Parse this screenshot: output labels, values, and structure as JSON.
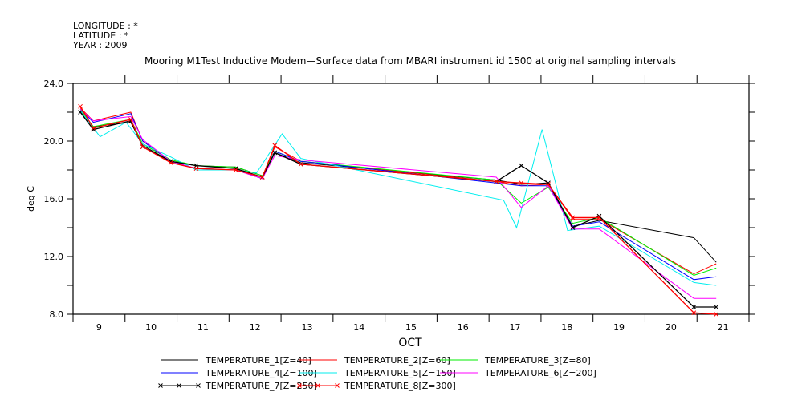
{
  "header": {
    "lines": [
      "LONGITUDE : *",
      "LATITUDE : *",
      "YEAR : 2009"
    ]
  },
  "chart_data": {
    "type": "line",
    "title": "Mooring M1Test Inductive Modem—Surface data from MBARI instrument id 1500 at original sampling intervals",
    "xlabel": "OCT",
    "ylabel": "deg C",
    "xlim": [
      9,
      22
    ],
    "ylim": [
      8,
      24
    ],
    "xticks": [
      9,
      10,
      11,
      12,
      13,
      14,
      15,
      16,
      17,
      18,
      19,
      20,
      21
    ],
    "yticks": [
      8,
      12,
      16,
      20,
      24
    ],
    "ytick_labels": [
      "8.0",
      "12.0",
      "16.0",
      "20.0",
      "24.0"
    ],
    "grid": false,
    "legend_position": "bottom",
    "series": [
      {
        "name": "TEMPERATURE_1[Z=40]",
        "color": "#000000",
        "marker": "none",
        "points": [
          [
            9.14,
            22.0
          ],
          [
            9.39,
            21.0
          ],
          [
            10.11,
            21.3
          ],
          [
            10.34,
            19.7
          ],
          [
            10.88,
            18.6
          ],
          [
            11.37,
            18.3
          ],
          [
            12.13,
            18.2
          ],
          [
            12.64,
            17.6
          ],
          [
            12.88,
            19.2
          ],
          [
            13.38,
            18.5
          ],
          [
            17.14,
            17.3
          ],
          [
            17.62,
            17.0
          ],
          [
            18.14,
            17.1
          ],
          [
            18.61,
            14.1
          ],
          [
            19.12,
            14.5
          ],
          [
            20.94,
            13.3
          ],
          [
            21.37,
            11.6
          ]
        ]
      },
      {
        "name": "TEMPERATURE_2[Z=60]",
        "color": "#ff0000",
        "marker": "none",
        "points": [
          [
            9.14,
            22.3
          ],
          [
            9.39,
            21.4
          ],
          [
            10.11,
            22.0
          ],
          [
            10.34,
            20.0
          ],
          [
            10.88,
            18.6
          ],
          [
            11.37,
            18.1
          ],
          [
            12.13,
            18.0
          ],
          [
            12.64,
            17.4
          ],
          [
            12.88,
            19.6
          ],
          [
            13.38,
            18.6
          ],
          [
            17.14,
            17.2
          ],
          [
            17.62,
            16.9
          ],
          [
            18.14,
            17.0
          ],
          [
            18.61,
            14.6
          ],
          [
            19.12,
            14.6
          ],
          [
            20.94,
            10.8
          ],
          [
            21.37,
            11.5
          ]
        ]
      },
      {
        "name": "TEMPERATURE_3[Z=80]",
        "color": "#00ee00",
        "marker": "none",
        "points": [
          [
            9.14,
            22.2
          ],
          [
            9.39,
            21.0
          ],
          [
            10.11,
            21.5
          ],
          [
            10.34,
            19.8
          ],
          [
            10.88,
            18.7
          ],
          [
            11.37,
            18.3
          ],
          [
            12.13,
            18.2
          ],
          [
            12.64,
            17.6
          ],
          [
            12.88,
            19.3
          ],
          [
            13.38,
            18.6
          ],
          [
            17.14,
            17.3
          ],
          [
            17.62,
            15.7
          ],
          [
            18.14,
            16.8
          ],
          [
            18.61,
            14.3
          ],
          [
            19.12,
            14.7
          ],
          [
            20.94,
            10.7
          ],
          [
            21.37,
            11.2
          ]
        ]
      },
      {
        "name": "TEMPERATURE_4[Z=100]",
        "color": "#0000ff",
        "marker": "none",
        "points": [
          [
            9.14,
            22.2
          ],
          [
            9.39,
            21.3
          ],
          [
            10.11,
            21.9
          ],
          [
            10.34,
            20.0
          ],
          [
            10.88,
            18.6
          ],
          [
            11.37,
            18.1
          ],
          [
            12.13,
            18.0
          ],
          [
            12.64,
            17.4
          ],
          [
            12.88,
            19.3
          ],
          [
            13.38,
            18.6
          ],
          [
            17.14,
            17.1
          ],
          [
            17.62,
            16.9
          ],
          [
            18.14,
            16.9
          ],
          [
            18.61,
            14.1
          ],
          [
            19.12,
            14.4
          ],
          [
            20.94,
            10.4
          ],
          [
            21.37,
            10.6
          ]
        ]
      },
      {
        "name": "TEMPERATURE_5[Z=150]",
        "color": "#00eeee",
        "marker": "none",
        "points": [
          [
            9.14,
            22.1
          ],
          [
            9.52,
            20.3
          ],
          [
            10.02,
            21.3
          ],
          [
            10.34,
            19.8
          ],
          [
            10.88,
            18.9
          ],
          [
            11.37,
            18.0
          ],
          [
            12.13,
            18.0
          ],
          [
            12.53,
            17.8
          ],
          [
            13.02,
            20.5
          ],
          [
            13.38,
            18.8
          ],
          [
            17.28,
            15.9
          ],
          [
            17.53,
            14.0
          ],
          [
            18.02,
            20.8
          ],
          [
            18.51,
            13.8
          ],
          [
            19.12,
            14.1
          ],
          [
            20.94,
            10.2
          ],
          [
            21.37,
            10.0
          ]
        ]
      },
      {
        "name": "TEMPERATURE_6[Z=200]",
        "color": "#ff00ff",
        "marker": "none",
        "points": [
          [
            9.14,
            22.2
          ],
          [
            9.39,
            21.4
          ],
          [
            10.11,
            21.7
          ],
          [
            10.34,
            20.1
          ],
          [
            10.88,
            18.6
          ],
          [
            11.37,
            18.1
          ],
          [
            12.13,
            18.0
          ],
          [
            12.64,
            17.4
          ],
          [
            12.88,
            19.0
          ],
          [
            13.38,
            18.7
          ],
          [
            17.14,
            17.5
          ],
          [
            17.62,
            15.4
          ],
          [
            18.14,
            16.9
          ],
          [
            18.61,
            13.9
          ],
          [
            19.12,
            13.9
          ],
          [
            20.94,
            9.1
          ],
          [
            21.37,
            9.1
          ]
        ]
      },
      {
        "name": "TEMPERATURE_7[Z=250]",
        "color": "#000000",
        "marker": "x",
        "points": [
          [
            9.14,
            22.0
          ],
          [
            9.39,
            20.8
          ],
          [
            10.11,
            21.4
          ],
          [
            10.34,
            19.6
          ],
          [
            10.88,
            18.6
          ],
          [
            11.37,
            18.3
          ],
          [
            12.13,
            18.1
          ],
          [
            12.64,
            17.5
          ],
          [
            12.88,
            19.2
          ],
          [
            13.38,
            18.4
          ],
          [
            17.14,
            17.2
          ],
          [
            17.62,
            18.3
          ],
          [
            18.14,
            17.1
          ],
          [
            18.61,
            14.0
          ],
          [
            19.12,
            14.8
          ],
          [
            20.94,
            8.5
          ],
          [
            21.37,
            8.5
          ]
        ]
      },
      {
        "name": "TEMPERATURE_8[Z=300]",
        "color": "#ff0000",
        "marker": "x",
        "points": [
          [
            9.14,
            22.4
          ],
          [
            9.39,
            20.9
          ],
          [
            10.11,
            21.5
          ],
          [
            10.34,
            19.6
          ],
          [
            10.88,
            18.5
          ],
          [
            11.37,
            18.1
          ],
          [
            12.13,
            18.0
          ],
          [
            12.64,
            17.5
          ],
          [
            12.88,
            19.7
          ],
          [
            13.38,
            18.4
          ],
          [
            17.14,
            17.2
          ],
          [
            17.62,
            17.1
          ],
          [
            18.14,
            17.0
          ],
          [
            18.61,
            14.7
          ],
          [
            19.12,
            14.7
          ],
          [
            20.94,
            8.1
          ],
          [
            21.37,
            8.0
          ]
        ]
      }
    ]
  }
}
